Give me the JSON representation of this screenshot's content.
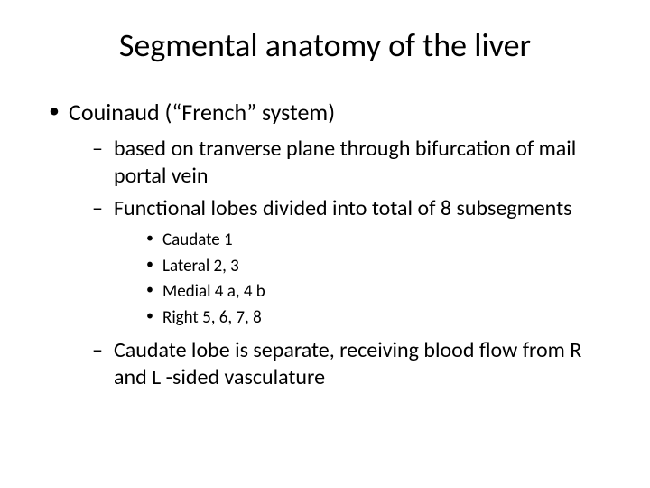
{
  "slide": {
    "title": "Segmental anatomy of the liver",
    "bullet1": "Couinaud (“French” system)",
    "sub1": " based on tranverse plane through bifurcation of mail portal vein",
    "sub2": "Functional lobes divided into total of 8 subsegments",
    "subsub1": "Caudate 1",
    "subsub2": "Lateral 2, 3",
    "subsub3": "Medial 4 a, 4 b",
    "subsub4": "Right 5, 6, 7, 8",
    "sub3": "Caudate lobe is separate, receiving blood flow from R and L  -sided vasculature"
  },
  "style": {
    "background_color": "#ffffff",
    "text_color": "#000000",
    "title_fontsize": 36,
    "level1_fontsize": 26,
    "level2_fontsize": 24,
    "level3_fontsize": 19,
    "font_family": "Calibri, Arial, sans-serif"
  }
}
